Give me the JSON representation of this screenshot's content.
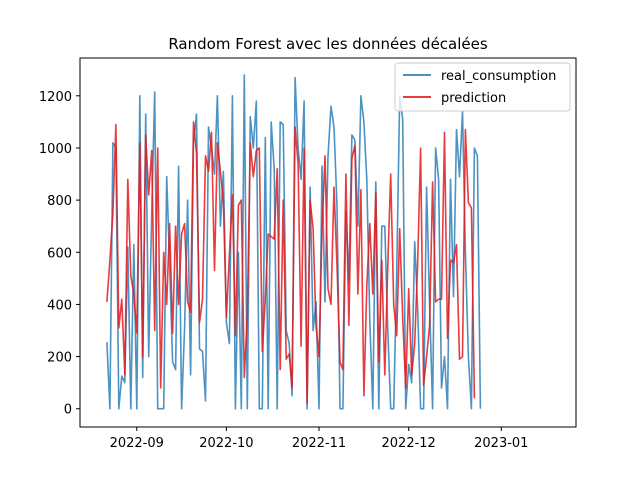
{
  "chart_data": {
    "type": "line",
    "title": "Random Forest avec les données décalées",
    "xlabel": "",
    "ylabel": "",
    "xlim": [
      "2022-08-13",
      "2023-01-26"
    ],
    "ylim": [
      -70,
      1345
    ],
    "x_ticks": [
      "2022-09",
      "2022-10",
      "2022-11",
      "2022-12",
      "2023-01"
    ],
    "x_tick_dates": [
      "2022-09-01",
      "2022-10-01",
      "2022-11-01",
      "2022-12-01",
      "2023-01-01"
    ],
    "y_ticks": [
      0,
      200,
      400,
      600,
      800,
      1000,
      1200
    ],
    "grid": false,
    "legend": "upper-right",
    "x_start": "2022-08-22",
    "x_step_days": 1,
    "series": [
      {
        "name": "real_consumption",
        "color": "#1f77b4",
        "values": [
          255,
          0,
          1020,
          1000,
          0,
          125,
          100,
          620,
          0,
          630,
          0,
          1200,
          120,
          1130,
          200,
          750,
          1215,
          0,
          0,
          0,
          890,
          560,
          180,
          150,
          930,
          0,
          310,
          800,
          130,
          1020,
          1130,
          230,
          220,
          30,
          1080,
          1000,
          900,
          1200,
          700,
          910,
          330,
          250,
          1200,
          0,
          600,
          0,
          1280,
          0,
          1120,
          1000,
          1180,
          0,
          0,
          1040,
          0,
          1100,
          920,
          0,
          1100,
          1090,
          300,
          250,
          50,
          1270,
          1000,
          880,
          1180,
          0,
          850,
          300,
          410,
          0,
          930,
          410,
          970,
          1160,
          1080,
          780,
          0,
          0,
          760,
          490,
          1050,
          1030,
          700,
          1200,
          1100,
          880,
          340,
          0,
          870,
          0,
          700,
          700,
          300,
          0,
          0,
          520,
          1200,
          1110,
          0,
          170,
          100,
          640,
          390,
          0,
          0,
          850,
          400,
          0,
          1000,
          880,
          80,
          200,
          0,
          880,
          430,
          1070,
          890,
          1140,
          600,
          200,
          0,
          1000,
          970,
          0
        ]
      },
      {
        "name": "prediction",
        "color": "#e41a1c",
        "values": [
          410,
          570,
          750,
          1090,
          310,
          420,
          130,
          880,
          510,
          440,
          290,
          1020,
          200,
          1050,
          820,
          990,
          300,
          1000,
          80,
          600,
          400,
          710,
          290,
          700,
          400,
          670,
          710,
          410,
          370,
          1100,
          980,
          330,
          420,
          970,
          910,
          1060,
          530,
          1020,
          910,
          790,
          350,
          590,
          820,
          280,
          780,
          800,
          120,
          360,
          1020,
          890,
          990,
          1000,
          220,
          420,
          670,
          660,
          650,
          920,
          150,
          800,
          190,
          210,
          80,
          1080,
          940,
          240,
          1000,
          20,
          800,
          690,
          320,
          200,
          680,
          970,
          460,
          400,
          850,
          550,
          180,
          150,
          900,
          320,
          960,
          1010,
          440,
          840,
          50,
          470,
          710,
          440,
          830,
          180,
          570,
          130,
          550,
          900,
          400,
          280,
          690,
          350,
          80,
          460,
          130,
          250,
          550,
          1000,
          90,
          200,
          320,
          870,
          410,
          420,
          420,
          1060,
          270,
          570,
          560,
          630,
          190,
          200,
          1070,
          790,
          770,
          40
        ]
      }
    ]
  }
}
